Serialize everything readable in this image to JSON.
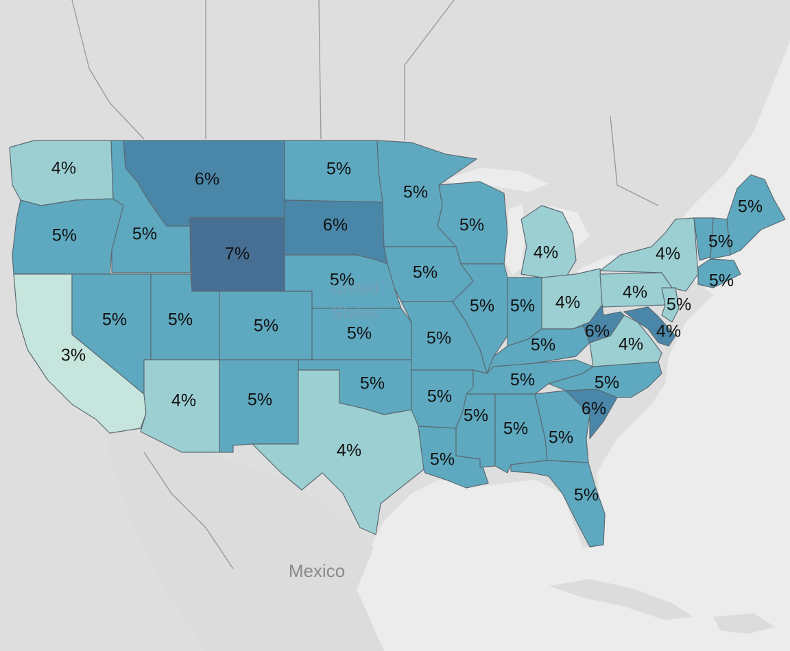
{
  "place_labels": {
    "country": [
      "United",
      "States"
    ],
    "neighbor": "Mexico"
  },
  "colors": {
    "3%": "#c6e5dc",
    "4%": "#9ccfd2",
    "5%": "#5ea9c0",
    "6%": "#4a86a8",
    "7%": "#476f94",
    "land": "#dedede",
    "water": "#ececec"
  },
  "states": [
    {
      "id": "WA",
      "value": "4%"
    },
    {
      "id": "OR",
      "value": "5%"
    },
    {
      "id": "CA",
      "value": "3%"
    },
    {
      "id": "ID",
      "value": "5%"
    },
    {
      "id": "NV",
      "value": "5%"
    },
    {
      "id": "MT",
      "value": "6%"
    },
    {
      "id": "WY",
      "value": "7%"
    },
    {
      "id": "UT",
      "value": "5%"
    },
    {
      "id": "AZ",
      "value": "4%"
    },
    {
      "id": "CO",
      "value": "5%"
    },
    {
      "id": "NM",
      "value": "5%"
    },
    {
      "id": "ND",
      "value": "5%"
    },
    {
      "id": "SD",
      "value": "6%"
    },
    {
      "id": "NE",
      "value": "5%"
    },
    {
      "id": "KS",
      "value": "5%"
    },
    {
      "id": "OK",
      "value": "5%"
    },
    {
      "id": "TX",
      "value": "4%"
    },
    {
      "id": "MN",
      "value": "5%"
    },
    {
      "id": "IA",
      "value": "5%"
    },
    {
      "id": "MO",
      "value": "5%"
    },
    {
      "id": "AR",
      "value": "5%"
    },
    {
      "id": "LA",
      "value": "5%"
    },
    {
      "id": "WI",
      "value": "5%"
    },
    {
      "id": "IL",
      "value": "5%"
    },
    {
      "id": "MI",
      "value": "4%"
    },
    {
      "id": "IN",
      "value": "5%"
    },
    {
      "id": "OH",
      "value": "4%"
    },
    {
      "id": "KY",
      "value": "5%"
    },
    {
      "id": "TN",
      "value": "5%"
    },
    {
      "id": "MS",
      "value": "5%"
    },
    {
      "id": "AL",
      "value": "5%"
    },
    {
      "id": "GA",
      "value": "5%"
    },
    {
      "id": "FL",
      "value": "5%"
    },
    {
      "id": "SC",
      "value": "6%"
    },
    {
      "id": "NC",
      "value": "5%"
    },
    {
      "id": "VA",
      "value": "4%"
    },
    {
      "id": "WV",
      "value": "6%"
    },
    {
      "id": "PA",
      "value": "4%"
    },
    {
      "id": "NY",
      "value": "4%"
    },
    {
      "id": "VT",
      "value": "5%"
    },
    {
      "id": "NH",
      "value": "5%"
    },
    {
      "id": "ME",
      "value": "5%"
    },
    {
      "id": "MA",
      "value": "5%"
    },
    {
      "id": "NJ",
      "value": "4%"
    },
    {
      "id": "MD",
      "value": "6%"
    }
  ]
}
